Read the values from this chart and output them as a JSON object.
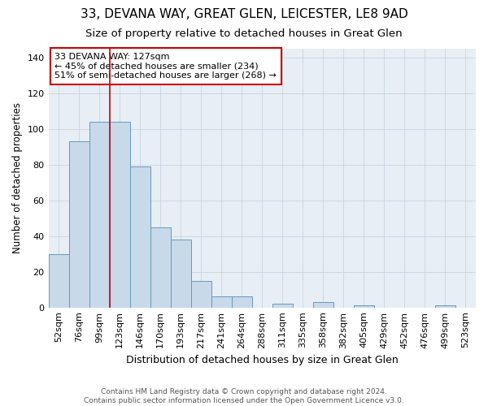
{
  "title1": "33, DEVANA WAY, GREAT GLEN, LEICESTER, LE8 9AD",
  "title2": "Size of property relative to detached houses in Great Glen",
  "xlabel": "Distribution of detached houses by size in Great Glen",
  "ylabel": "Number of detached properties",
  "categories": [
    "52sqm",
    "76sqm",
    "99sqm",
    "123sqm",
    "146sqm",
    "170sqm",
    "193sqm",
    "217sqm",
    "241sqm",
    "264sqm",
    "288sqm",
    "311sqm",
    "335sqm",
    "358sqm",
    "382sqm",
    "405sqm",
    "429sqm",
    "452sqm",
    "476sqm",
    "499sqm",
    "523sqm"
  ],
  "values": [
    30,
    93,
    104,
    104,
    79,
    45,
    38,
    15,
    6,
    6,
    0,
    2,
    0,
    3,
    0,
    1,
    0,
    0,
    0,
    1,
    0
  ],
  "bar_color": "#c8d9ea",
  "bar_edge_color": "#6699bb",
  "bar_linewidth": 0.7,
  "vline_x_index": 3,
  "vline_color": "#cc0000",
  "vline_linewidth": 1.2,
  "annotation_text": "33 DEVANA WAY: 127sqm\n← 45% of detached houses are smaller (234)\n51% of semi-detached houses are larger (268) →",
  "annotation_box_color": "#ffffff",
  "annotation_box_edge": "#cc0000",
  "ylim": [
    0,
    145
  ],
  "yticks": [
    0,
    20,
    40,
    60,
    80,
    100,
    120,
    140
  ],
  "grid_color": "#c8d4e0",
  "bg_color": "#e8eef5",
  "footer1": "Contains HM Land Registry data © Crown copyright and database right 2024.",
  "footer2": "Contains public sector information licensed under the Open Government Licence v3.0.",
  "title1_fontsize": 11,
  "title2_fontsize": 9.5,
  "xlabel_fontsize": 9,
  "ylabel_fontsize": 8.5,
  "tick_fontsize": 8,
  "annotation_fontsize": 8,
  "footer_fontsize": 6.5
}
